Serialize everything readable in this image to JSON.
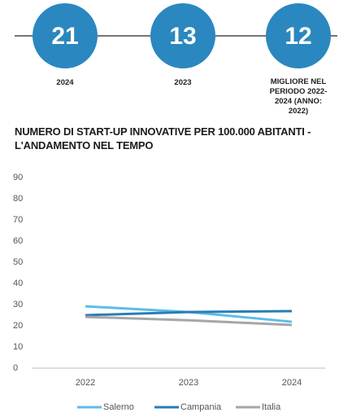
{
  "header": {
    "items": [
      {
        "value": 21,
        "label": "2024"
      },
      {
        "value": 13,
        "label": "2023"
      },
      {
        "value": 12,
        "label": "MIGLIORE NEL PERIODO 2022-2024 (ANNO: 2022)"
      }
    ]
  },
  "chart_data": {
    "type": "line",
    "title": "NUMERO DI START-UP INNOVATIVE PER 100.000 ABITANTI - L'ANDAMENTO NEL TEMPO",
    "categories": [
      "2022",
      "2023",
      "2024"
    ],
    "series": [
      {
        "name": "Salerno",
        "color": "#5cbde8",
        "values": [
          29.2,
          26.5,
          21.9
        ]
      },
      {
        "name": "Campania",
        "color": "#2a7db5",
        "values": [
          25,
          26.5,
          26.9
        ]
      },
      {
        "name": "Italia",
        "color": "#a6a6a6",
        "values": [
          24.2,
          22.6,
          20.4
        ]
      }
    ],
    "ylim": [
      0,
      90
    ],
    "yticks": [
      0,
      10,
      20,
      30,
      40,
      50,
      60,
      70,
      80,
      90
    ],
    "grid": false,
    "legend": "bottom"
  }
}
